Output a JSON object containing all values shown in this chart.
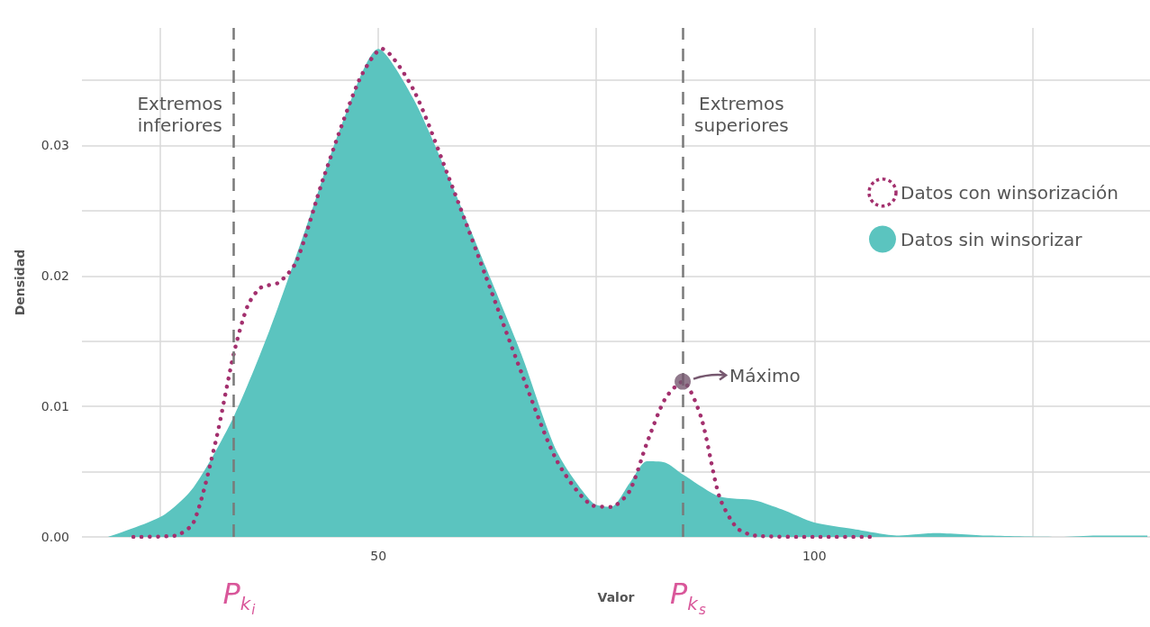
{
  "chart_data": {
    "type": "line",
    "xlabel": "Valor",
    "ylabel": "Densidad",
    "xlim": [
      16,
      138.5
    ],
    "ylim": [
      0,
      0.039
    ],
    "xticks": [
      {
        "value": 25,
        "label": null
      },
      50,
      {
        "value": 75,
        "label": null
      },
      100,
      {
        "value": 125,
        "label": null
      }
    ],
    "yticks": [
      {
        "value": 0,
        "label": "0.00"
      },
      {
        "value": 0.005,
        "label": null
      },
      0.01,
      {
        "value": 0.015,
        "label": null
      },
      0.02,
      {
        "value": 0.025,
        "label": null
      },
      0.03,
      {
        "value": 0.035,
        "label": null
      }
    ],
    "grid": true,
    "legend": "right",
    "marker": "none",
    "series": [
      {
        "name": "Datos con winsorización",
        "line_style": "dotted",
        "color": "#a3306e",
        "x": [
          21.9,
          26.7,
          28.8,
          31.3,
          33.4,
          35.0,
          36.5,
          38.6,
          40.6,
          43.7,
          47.8,
          50.4,
          54.0,
          58.1,
          62.3,
          66.4,
          70.5,
          74.6,
          76.7,
          78.8,
          80.8,
          82.9,
          84.9,
          87.0,
          89.1,
          91.1,
          93.2,
          100,
          106.4
        ],
        "values": [
          0,
          0.0001,
          0.0011,
          0.0072,
          0.014,
          0.0177,
          0.0191,
          0.0195,
          0.0211,
          0.0275,
          0.035,
          0.0374,
          0.0343,
          0.0275,
          0.02,
          0.0126,
          0.0058,
          0.0024,
          0.0023,
          0.0035,
          0.0072,
          0.0106,
          0.0119,
          0.0092,
          0.0031,
          0.0007,
          0.0001,
          0,
          0
        ]
      },
      {
        "name": "Datos sin winsorizar",
        "type": "area",
        "color": "#5bc4bf",
        "x": [
          19.0,
          25.2,
          28.8,
          33.4,
          37.5,
          41.6,
          45.8,
          50,
          54.0,
          58.1,
          62.3,
          66.4,
          70.5,
          74.6,
          76.7,
          78.8,
          80.8,
          82.9,
          84.9,
          89.1,
          93.2,
          96.3,
          100,
          104.5,
          109.7,
          113.8,
          120.0,
          128.2,
          132.4,
          138.2
        ],
        "values": [
          0,
          0.0016,
          0.0038,
          0.0092,
          0.0158,
          0.0235,
          0.0316,
          0.0374,
          0.0336,
          0.0275,
          0.0207,
          0.014,
          0.0065,
          0.0026,
          0.0023,
          0.0041,
          0.0058,
          0.0057,
          0.0048,
          0.0031,
          0.0028,
          0.0021,
          0.0011,
          0.0006,
          0.0001,
          0.0003,
          0.0001,
          0,
          0.0001,
          0.0001
        ]
      },
      {
        "type": "scatter",
        "marker": "circle",
        "color": "#76586f",
        "x": [
          84.9
        ],
        "values": [
          0.0119
        ]
      }
    ],
    "ref_lines": [
      {
        "axis": "x",
        "value": 33.4,
        "label": "P$_{k}$$_{i}$",
        "color": "#7a7a7a",
        "line_style": "dashed"
      },
      {
        "axis": "x",
        "value": 84.9,
        "label": "P$_{k}$$_{s}$",
        "color": "#7a7a7a",
        "line_style": "dashed"
      }
    ],
    "annotations": [
      "Extremos inferiores",
      "Extremos superiores",
      "Máximo"
    ]
  }
}
